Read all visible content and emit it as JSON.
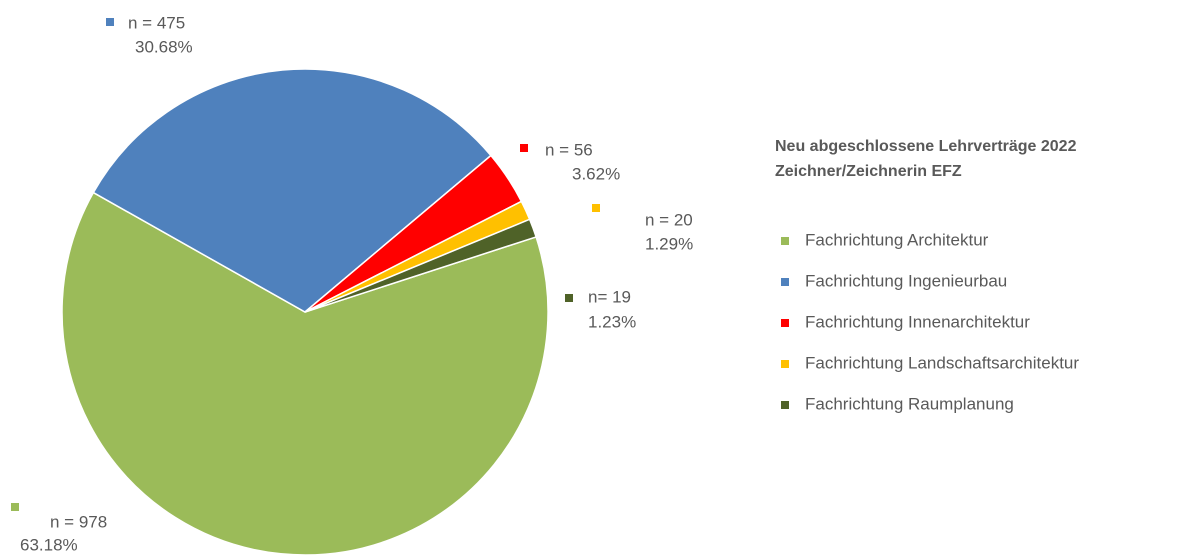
{
  "chart_data": {
    "type": "pie",
    "title": "Neu abgeschlossene Lehrverträge 2022",
    "subtitle": "Zeichner/Zeichnerin EFZ",
    "categories": [
      "Fachrichtung Architektur",
      "Fachrichtung Ingenieurbau",
      "Fachrichtung Innenarchitektur",
      "Fachrichtung Landschaftsarchitektur",
      "Fachrichtung Raumplanung"
    ],
    "values": [
      978,
      475,
      56,
      20,
      19
    ],
    "value_labels": [
      "n = 978",
      "n = 475",
      "n = 56",
      "n = 20",
      "n= 19"
    ],
    "percentages": [
      63.18,
      30.68,
      3.62,
      1.29,
      1.23
    ],
    "percentage_labels": [
      "63.18%",
      "30.68%",
      "3.62%",
      "1.29%",
      "1.23%"
    ],
    "colors": [
      "#9bbb59",
      "#4f81bd",
      "#ff0000",
      "#ffc000",
      "#4f6228"
    ],
    "legend": "right"
  }
}
